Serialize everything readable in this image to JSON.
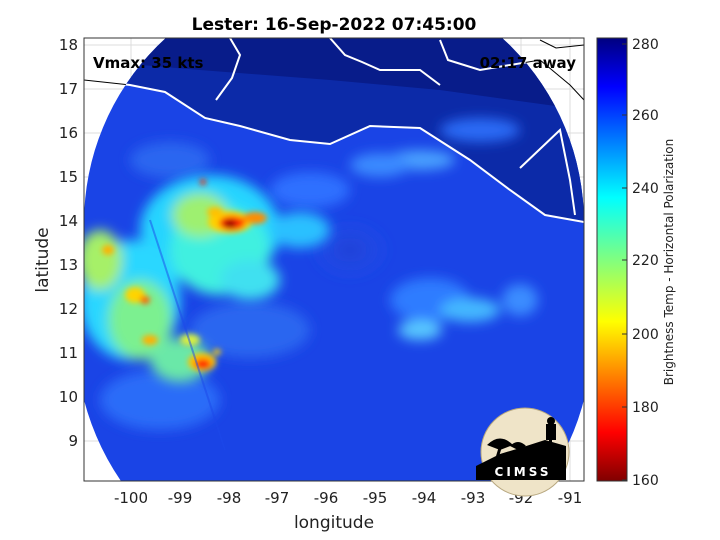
{
  "title": "Lester: 16-Sep-2022 07:45:00",
  "vmax": "Vmax: 35 kts",
  "time_away": "02:17 away",
  "xlabel": "longitude",
  "ylabel": "latitude",
  "x_ticks": [
    "-100",
    "-99",
    "-98",
    "-97",
    "-96",
    "-95",
    "-94",
    "-93",
    "-92",
    "-91"
  ],
  "y_ticks": [
    "18",
    "17",
    "16",
    "15",
    "14",
    "13",
    "12",
    "11",
    "10",
    "9"
  ],
  "colorbar": {
    "label": "Brightness Temp - Horizontal Polarization",
    "ticks": [
      "280",
      "260",
      "240",
      "220",
      "200",
      "180",
      "160"
    ],
    "range": [
      160,
      280
    ]
  },
  "logo": {
    "text": "CIMSS"
  },
  "map": {
    "lon_range": [
      -100.9,
      -90.7
    ],
    "lat_range": [
      8.1,
      18.2
    ],
    "swath_center": {
      "lon": -95.8,
      "lat": 13.2
    },
    "cold_cores": [
      {
        "lon": -97.9,
        "lat": 13.9,
        "value": 165
      },
      {
        "lon": -98.5,
        "lat": 10.8,
        "value": 170
      },
      {
        "lon": -99.9,
        "lat": 12.3,
        "value": 185
      },
      {
        "lon": -100.5,
        "lat": 13.1,
        "value": 195
      }
    ]
  }
}
